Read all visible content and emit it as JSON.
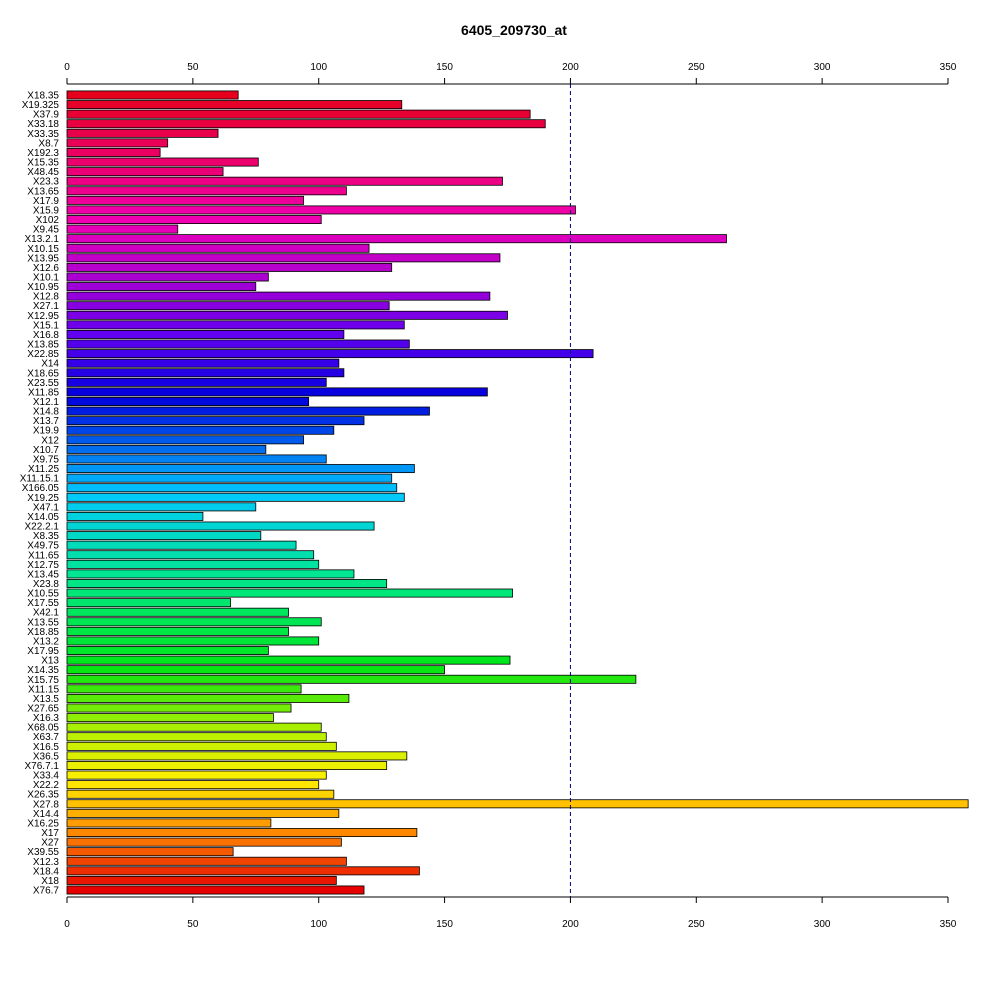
{
  "chart_data": {
    "type": "bar",
    "orientation": "horizontal",
    "title": "6405_209730_at",
    "xlabel": "",
    "ylabel": "",
    "xlim": [
      0,
      350
    ],
    "x_ticks": [
      0,
      50,
      100,
      150,
      200,
      250,
      300,
      350
    ],
    "reference_line": 200,
    "grid": false,
    "categories": [
      "X18.35",
      "X19.325",
      "X37.9",
      "X33.18",
      "X33.35",
      "X8.7",
      "X192.3",
      "X15.35",
      "X48.45",
      "X23.3",
      "X13.65",
      "X17.9",
      "X15.9",
      "X102",
      "X9.45",
      "X13.2.1",
      "X10.15",
      "X13.95",
      "X12.6",
      "X10.1",
      "X10.95",
      "X12.8",
      "X27.1",
      "X12.95",
      "X15.1",
      "X16.8",
      "X13.85",
      "X22.85",
      "X14",
      "X18.65",
      "X23.55",
      "X11.85",
      "X12.1",
      "X14.8",
      "X13.7",
      "X19.9",
      "X12",
      "X10.7",
      "X9.75",
      "X11.25",
      "X11.15.1",
      "X166.05",
      "X19.25",
      "X47.1",
      "X14.05",
      "X22.2.1",
      "X8.35",
      "X49.75",
      "X11.65",
      "X12.75",
      "X13.45",
      "X23.8",
      "X10.55",
      "X17.55",
      "X42.1",
      "X13.55",
      "X18.85",
      "X13.2",
      "X17.95",
      "X13",
      "X14.35",
      "X15.75",
      "X11.15",
      "X13.5",
      "X27.65",
      "X16.3",
      "X68.05",
      "X63.7",
      "X16.5",
      "X36.5",
      "X76.7.1",
      "X33.4",
      "X22.2",
      "X26.35",
      "X27.8",
      "X14.4",
      "X16.25",
      "X17",
      "X27",
      "X39.55",
      "X12.3",
      "X18.4",
      "X18",
      "X76.7"
    ],
    "values": [
      68,
      133,
      184,
      190,
      60,
      40,
      37,
      76,
      62,
      173,
      111,
      94,
      202,
      101,
      44,
      262,
      120,
      172,
      129,
      80,
      75,
      168,
      128,
      175,
      134,
      110,
      136,
      209,
      108,
      110,
      103,
      167,
      96,
      144,
      118,
      106,
      94,
      79,
      103,
      138,
      129,
      131,
      134,
      75,
      54,
      122,
      77,
      91,
      98,
      100,
      114,
      127,
      177,
      65,
      88,
      101,
      88,
      100,
      80,
      176,
      150,
      226,
      93,
      112,
      89,
      82,
      101,
      103,
      107,
      135,
      127,
      103,
      100,
      106,
      358,
      108,
      81,
      139,
      109,
      66,
      111,
      140,
      107,
      118
    ]
  }
}
